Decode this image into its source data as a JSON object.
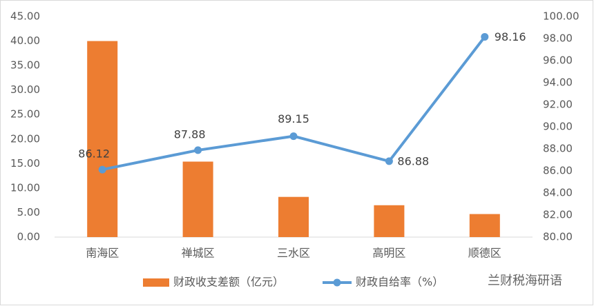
{
  "chart_data": {
    "type": "combo",
    "categories": [
      "南海区",
      "禅城区",
      "三水区",
      "高明区",
      "顺德区"
    ],
    "series": [
      {
        "name": "财政收支差额（亿元）",
        "type": "bar",
        "color": "#ed7d31",
        "values": [
          40.0,
          15.4,
          8.2,
          6.5,
          4.7
        ]
      },
      {
        "name": "财政自给率（%）",
        "type": "line",
        "axis": "y2",
        "color": "#5b9bd5",
        "values": [
          86.12,
          87.88,
          89.15,
          86.88,
          98.16
        ]
      }
    ],
    "ylim": [
      0,
      45
    ],
    "yticks": [
      {
        "value": 0,
        "label": "0.00"
      },
      {
        "value": 5,
        "label": "5.00"
      },
      {
        "value": 10,
        "label": "10.00"
      },
      {
        "value": 15,
        "label": "15.00"
      },
      {
        "value": 20,
        "label": "20.00"
      },
      {
        "value": 25,
        "label": "25.00"
      },
      {
        "value": 30,
        "label": "30.00"
      },
      {
        "value": 35,
        "label": "35.00"
      },
      {
        "value": 40,
        "label": "40.00"
      },
      {
        "value": 45,
        "label": "45.00"
      }
    ],
    "y2lim": [
      80,
      100
    ],
    "y2ticks": [
      {
        "value": 80,
        "label": "80.00"
      },
      {
        "value": 82,
        "label": "82.00"
      },
      {
        "value": 84,
        "label": "84.00"
      },
      {
        "value": 86,
        "label": "86.00"
      },
      {
        "value": 88,
        "label": "88.00"
      },
      {
        "value": 90,
        "label": "90.00"
      },
      {
        "value": 92,
        "label": "92.00"
      },
      {
        "value": 94,
        "label": "94.00"
      },
      {
        "value": 96,
        "label": "96.00"
      },
      {
        "value": 98,
        "label": "98.00"
      },
      {
        "value": 100,
        "label": "100.00"
      }
    ],
    "grid": false,
    "legend": "bottom",
    "watermark": "兰财税海研语"
  }
}
